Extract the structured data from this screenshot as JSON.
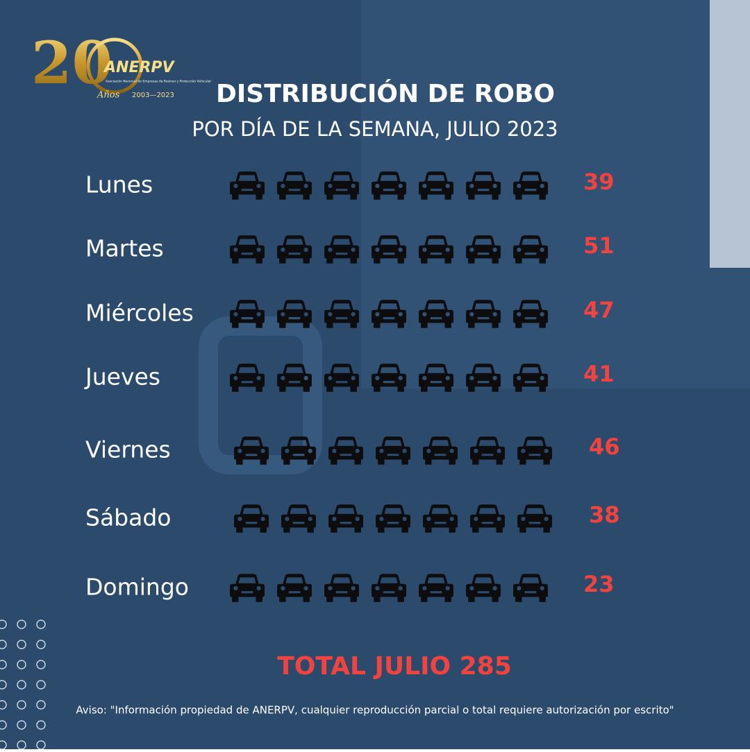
{
  "logo": {
    "number": "20",
    "brand": "ANERPV",
    "subtitle": "Asociación Nacional de Empresas de Rastreo y Protección Vehicular",
    "years_word": "Años",
    "years": "2003—2023"
  },
  "chart_data": {
    "type": "pictogram",
    "title": "DISTRIBUCIÓN DE ROBO",
    "subtitle": "POR DÍA DE LA SEMANA, JULIO 2023",
    "categories": [
      "Lunes",
      "Martes",
      "Miércoles",
      "Jueves",
      "Viernes",
      "Sábado",
      "Domingo"
    ],
    "values": [
      39,
      51,
      47,
      41,
      46,
      38,
      23
    ],
    "xlim": [
      0,
      84
    ],
    "color": "#f2433f",
    "empty_color": "#0d0d0f",
    "total": "TOTAL JULIO 285"
  },
  "footer": "Aviso: \"Información propiedad de ANERPV, cualquier reproducción parcial o total requiere autorización por escrito\""
}
